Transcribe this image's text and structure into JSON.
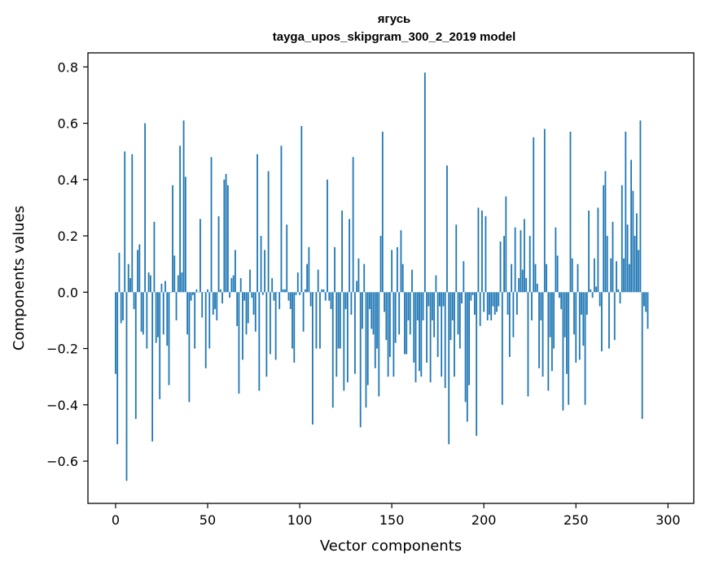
{
  "chart_data": {
    "type": "bar",
    "title": "ягусь",
    "subtitle": "tayga_upos_skipgram_300_2_2019 model",
    "xlabel": "Vector components",
    "ylabel": "Components values",
    "xlim": [
      -15,
      314
    ],
    "ylim": [
      -0.75,
      0.85
    ],
    "xticks": [
      0,
      50,
      100,
      150,
      200,
      250,
      300
    ],
    "xtick_labels": [
      "0",
      "50",
      "100",
      "150",
      "200",
      "250",
      "300"
    ],
    "yticks": [
      -0.6,
      -0.4,
      -0.2,
      0.0,
      0.2,
      0.4,
      0.6,
      0.8
    ],
    "ytick_labels": [
      "−0.6",
      "−0.4",
      "−0.2",
      "0.0",
      "0.2",
      "0.4",
      "0.6",
      "0.8"
    ],
    "bar_color": "#1f77b4",
    "grid": false,
    "values": [
      -0.29,
      -0.54,
      0.14,
      -0.11,
      -0.1,
      0.5,
      -0.67,
      0.1,
      0.05,
      0.49,
      -0.06,
      -0.45,
      0.15,
      0.17,
      -0.14,
      -0.15,
      0.6,
      -0.2,
      0.07,
      0.06,
      -0.53,
      0.25,
      -0.18,
      -0.16,
      -0.38,
      0.03,
      -0.15,
      0.04,
      -0.19,
      -0.33,
      0.0,
      0.38,
      0.13,
      -0.1,
      0.06,
      0.52,
      0.07,
      0.61,
      0.41,
      -0.15,
      -0.39,
      -0.03,
      -0.01,
      -0.2,
      0.01,
      0.0,
      0.26,
      -0.09,
      0.0,
      -0.27,
      0.01,
      -0.2,
      0.48,
      -0.08,
      -0.06,
      -0.1,
      0.27,
      0.01,
      -0.04,
      0.4,
      0.42,
      0.38,
      -0.02,
      0.05,
      0.06,
      0.15,
      -0.12,
      -0.36,
      0.05,
      -0.24,
      -0.03,
      -0.15,
      -0.11,
      0.08,
      -0.02,
      -0.08,
      -0.14,
      0.49,
      -0.35,
      0.2,
      -0.01,
      0.15,
      -0.3,
      0.43,
      -0.22,
      0.05,
      -0.03,
      -0.24,
      0.0,
      -0.06,
      0.52,
      0.01,
      0.01,
      0.24,
      -0.03,
      -0.06,
      -0.2,
      -0.25,
      -0.01,
      0.07,
      -0.01,
      0.59,
      -0.14,
      0.01,
      0.1,
      0.16,
      -0.05,
      -0.47,
      0.0,
      -0.2,
      0.08,
      -0.2,
      0.01,
      0.01,
      -0.03,
      0.4,
      -0.03,
      -0.06,
      -0.41,
      0.16,
      -0.3,
      -0.2,
      -0.2,
      0.29,
      -0.35,
      -0.06,
      -0.32,
      0.26,
      -0.08,
      0.48,
      -0.29,
      0.04,
      0.12,
      -0.48,
      -0.13,
      0.1,
      -0.41,
      -0.33,
      -0.06,
      -0.13,
      -0.15,
      -0.27,
      -0.2,
      -0.37,
      0.2,
      0.57,
      -0.07,
      -0.17,
      -0.3,
      -0.23,
      0.15,
      -0.3,
      -0.18,
      0.16,
      -0.15,
      0.22,
      0.1,
      -0.22,
      -0.22,
      -0.1,
      -0.15,
      0.08,
      -0.25,
      -0.32,
      -0.1,
      -0.28,
      -0.3,
      -0.1,
      0.78,
      -0.25,
      -0.05,
      -0.32,
      -0.1,
      -0.16,
      0.06,
      -0.23,
      -0.05,
      -0.3,
      -0.05,
      -0.34,
      0.45,
      -0.54,
      -0.17,
      -0.1,
      -0.3,
      0.24,
      -0.15,
      -0.2,
      -0.04,
      0.11,
      -0.39,
      -0.46,
      -0.33,
      -0.03,
      -0.01,
      -0.08,
      -0.51,
      0.3,
      -0.12,
      0.29,
      -0.07,
      0.27,
      -0.1,
      -0.08,
      -0.1,
      -0.05,
      -0.08,
      -0.07,
      -0.05,
      0.18,
      -0.4,
      0.2,
      0.34,
      -0.08,
      -0.23,
      0.1,
      -0.16,
      0.23,
      -0.08,
      0.05,
      0.22,
      0.08,
      0.26,
      0.05,
      -0.37,
      0.2,
      -0.1,
      0.55,
      0.1,
      0.03,
      -0.27,
      -0.1,
      -0.3,
      0.58,
      0.1,
      -0.35,
      -0.16,
      -0.28,
      -0.2,
      0.23,
      0.13,
      -0.02,
      -0.06,
      -0.42,
      -0.16,
      -0.29,
      -0.4,
      0.57,
      0.12,
      -0.15,
      -0.25,
      0.1,
      -0.24,
      -0.08,
      -0.19,
      -0.4,
      -0.08,
      0.29,
      0.01,
      -0.02,
      0.12,
      0.02,
      0.3,
      -0.05,
      -0.21,
      0.38,
      0.43,
      0.2,
      -0.2,
      0.12,
      0.25,
      -0.17,
      0.11,
      0.01,
      -0.04,
      0.38,
      0.12,
      0.57,
      0.24,
      0.1,
      0.47,
      0.36,
      0.2,
      0.28,
      0.15,
      0.61,
      -0.45,
      -0.05,
      -0.07,
      -0.13
    ]
  }
}
